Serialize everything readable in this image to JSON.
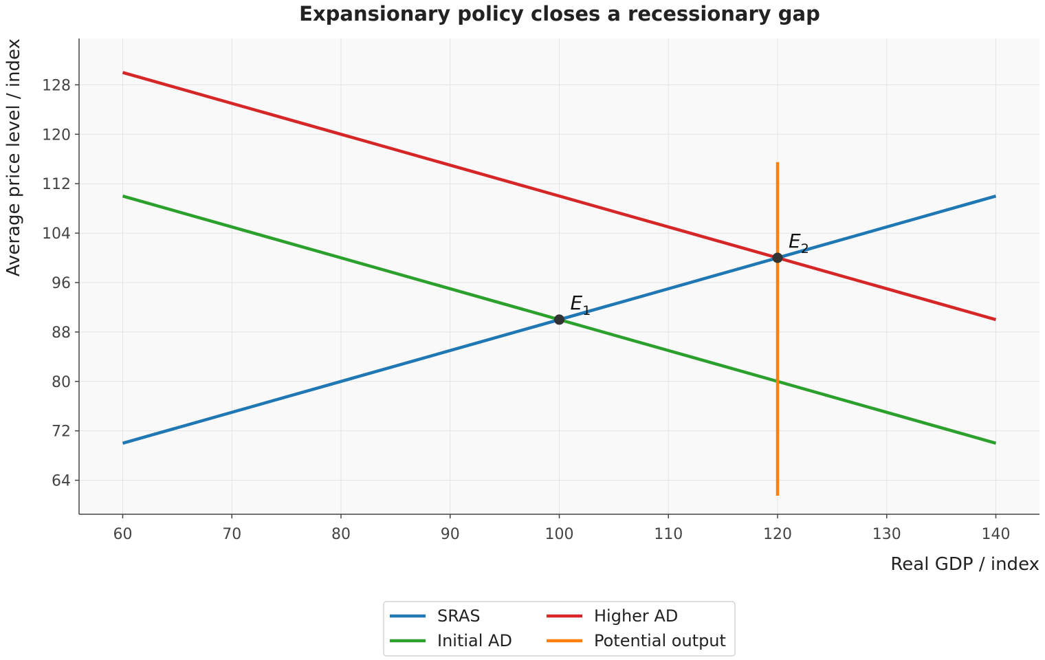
{
  "chart_data": {
    "type": "line",
    "title": "Expansionary policy closes a recessionary gap",
    "xlabel": "Real GDP / index",
    "ylabel": "Average price level / index",
    "xlim": [
      56,
      144
    ],
    "ylim": [
      58.5,
      135.5
    ],
    "x_ticks": [
      60,
      70,
      80,
      90,
      100,
      110,
      120,
      130,
      140
    ],
    "y_ticks": [
      64,
      72,
      80,
      88,
      96,
      104,
      112,
      120,
      128
    ],
    "grid": true,
    "legend_position": "bottom-center",
    "series": [
      {
        "name": "SRAS",
        "color": "#1f77b4",
        "points": [
          [
            60,
            70
          ],
          [
            140,
            110
          ]
        ]
      },
      {
        "name": "Higher AD",
        "color": "#d62728",
        "points": [
          [
            60,
            130
          ],
          [
            140,
            90
          ]
        ]
      },
      {
        "name": "Initial AD",
        "color": "#2ca02c",
        "points": [
          [
            60,
            110
          ],
          [
            140,
            70
          ]
        ]
      },
      {
        "name": "Potential output",
        "color": "#ff7f0e",
        "points": [
          [
            120,
            61.5
          ],
          [
            120,
            115.5
          ]
        ]
      }
    ],
    "equilibria": [
      {
        "label": "E",
        "subscript": "1",
        "x": 100,
        "y": 90
      },
      {
        "label": "E",
        "subscript": "2",
        "x": 120,
        "y": 100
      }
    ]
  }
}
